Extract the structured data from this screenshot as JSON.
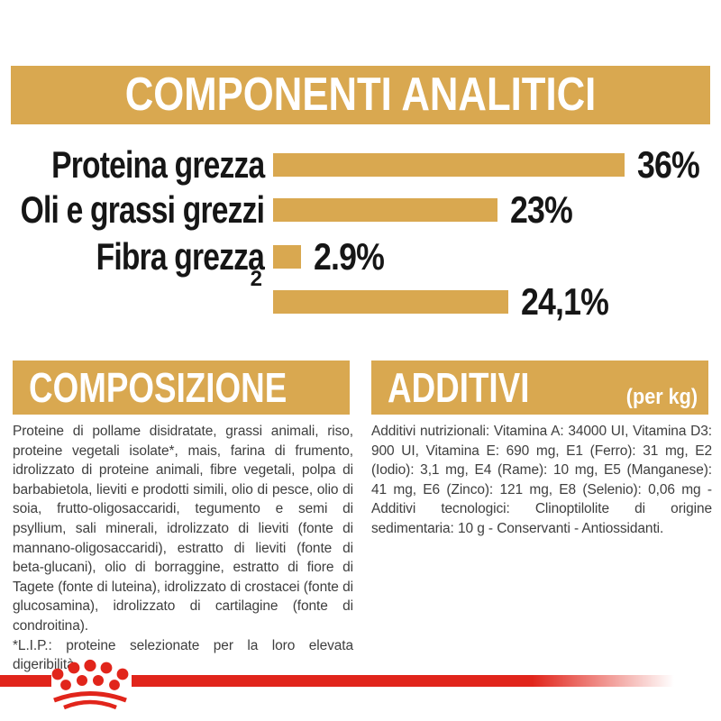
{
  "colors": {
    "gold": "#D9A850",
    "red": "#E1251B",
    "heading_text": "#FFFFFF",
    "chart_text": "#161616",
    "body_text": "#3E3E3E",
    "background": "#FFFFFF"
  },
  "analytics": {
    "title": "COMPONENTI ANALITICI",
    "chart_data": {
      "type": "bar",
      "orientation": "horizontal",
      "categories": [
        "Proteina grezza",
        "Oli e grassi grezzi",
        "Fibra grezza",
        ""
      ],
      "footnote_marker": "2",
      "values": [
        36,
        23,
        2.9,
        24.1
      ],
      "display_values": [
        "36%",
        "23%",
        "2.9%",
        "24,1%"
      ],
      "unit": "%",
      "xlim": [
        0,
        40
      ],
      "bar_color": "#D9A850",
      "grid": false,
      "legend": false
    }
  },
  "composition": {
    "title": "COMPOSIZIONE",
    "body": "Proteine di pollame disidratate, grassi animali, riso, proteine vegetali isolate*, mais, farina di frumento, idrolizzato di proteine animali, fibre vegetali, polpa di barbabietola, lieviti e prodotti simili, olio di pesce, olio di soia, frutto-oligosaccaridi, tegumento e semi di psyllium, sali minerali, idrolizzato di lieviti (fonte di mannano-oligosaccaridi), estratto di lieviti (fonte di beta-glucani), olio di borraggine, estratto di fiore di Tagete (fonte di luteina), idrolizzato di crostacei (fonte di glucosamina), idrolizzato di cartilagine (fonte di condroitina).",
    "footnote": "*L.I.P.: proteine selezionate per la loro elevata digeribilità."
  },
  "additives": {
    "title": "ADDITIVI",
    "unit_label": "(per kg)",
    "body": "Additivi nutrizionali: Vitamina A: 34000 UI, Vitamina D3: 900 UI, Vitamina E: 690 mg, E1 (Ferro): 31 mg, E2 (Iodio): 3,1 mg, E4 (Rame): 10 mg, E5 (Manganese): 41 mg, E6 (Zinco): 121 mg, E8 (Selenio): 0,06 mg - Additivi tecnologici: Clinoptilolite di origine sedimentaria: 10 g - Conservanti - Antiossidanti."
  },
  "footer": {
    "logo": "royal-canin-crown"
  }
}
